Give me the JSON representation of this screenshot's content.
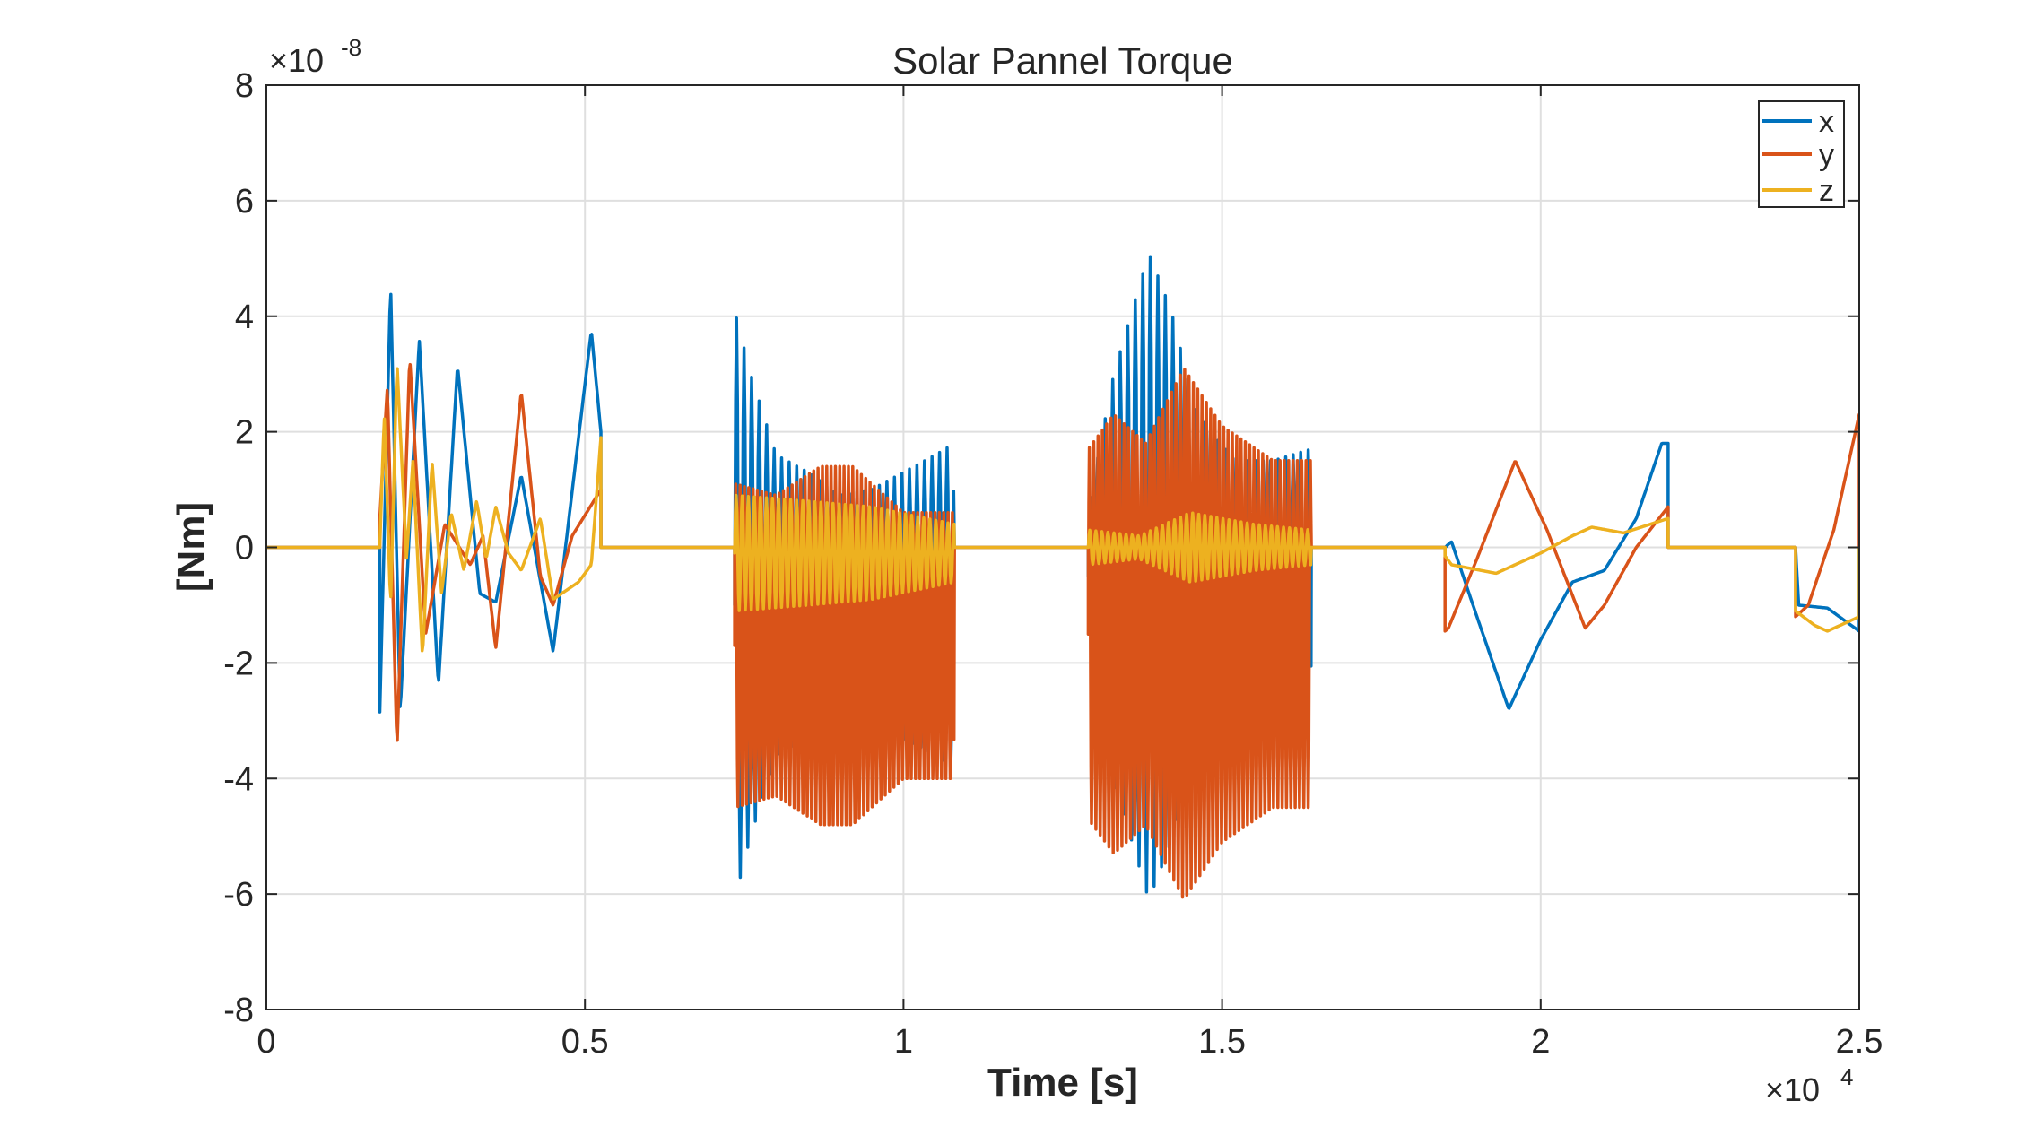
{
  "chart_data": {
    "type": "line",
    "title": "Solar Pannel Torque",
    "xlabel": "Time [s]",
    "ylabel": "[Nm]",
    "x_exponent_label": "×10",
    "x_exponent_power": "4",
    "y_exponent_label": "×10",
    "y_exponent_power": "-8",
    "xlim": [
      0,
      2.5
    ],
    "ylim": [
      -8,
      8
    ],
    "xticks": [
      0,
      0.5,
      1,
      1.5,
      2,
      2.5
    ],
    "xtick_labels": [
      "0",
      "0.5",
      "1",
      "1.5",
      "2",
      "2.5"
    ],
    "yticks": [
      -8,
      -6,
      -4,
      -2,
      0,
      2,
      4,
      6,
      8
    ],
    "ytick_labels": [
      "-8",
      "-6",
      "-4",
      "-2",
      "0",
      "2",
      "4",
      "6",
      "8"
    ],
    "grid": true,
    "legend_position": "top-right",
    "colors": {
      "x": "#0072BD",
      "y": "#D95319",
      "z": "#EDB120",
      "grid": "#dfdfdf",
      "axis": "#262626"
    },
    "series": [
      {
        "name": "x",
        "segments": [
          {
            "x0": 0.178,
            "x1": 0.525,
            "baseline": 0.0,
            "points": [
              [
                0.178,
                -2.85
              ],
              [
                0.195,
                4.55
              ],
              [
                0.21,
                -2.85
              ],
              [
                0.24,
                3.6
              ],
              [
                0.27,
                -2.4
              ],
              [
                0.3,
                3.15
              ],
              [
                0.335,
                -0.8
              ],
              [
                0.36,
                -0.95
              ],
              [
                0.4,
                1.25
              ],
              [
                0.45,
                -1.8
              ],
              [
                0.51,
                3.75
              ],
              [
                0.525,
                2.0
              ]
            ],
            "osc": []
          },
          {
            "x0": 0.735,
            "x1": 1.08,
            "baseline": -1.0,
            "points": [],
            "osc": [
              {
                "period": 0.0118,
                "amp": [
                  [
                    0.735,
                    5.1
                  ],
                  [
                    0.76,
                    4.0
                  ],
                  [
                    0.8,
                    2.6
                  ],
                  [
                    0.85,
                    2.3
                  ],
                  [
                    0.9,
                    1.9
                  ],
                  [
                    0.95,
                    2.0
                  ],
                  [
                    1.0,
                    2.3
                  ],
                  [
                    1.05,
                    2.6
                  ],
                  [
                    1.08,
                    2.8
                  ]
                ]
              }
            ]
          },
          {
            "x0": 1.29,
            "x1": 1.64,
            "baseline": -0.5,
            "points": [],
            "osc": [
              {
                "period": 0.0118,
                "amp": [
                  [
                    1.29,
                    1.2
                  ],
                  [
                    1.33,
                    3.5
                  ],
                  [
                    1.385,
                    5.6
                  ],
                  [
                    1.42,
                    4.6
                  ],
                  [
                    1.46,
                    2.8
                  ],
                  [
                    1.52,
                    2.0
                  ],
                  [
                    1.58,
                    2.0
                  ],
                  [
                    1.64,
                    2.2
                  ]
                ]
              }
            ]
          },
          {
            "x0": 1.85,
            "x1": 2.2,
            "baseline": 0.0,
            "points": [
              [
                1.85,
                0.0
              ],
              [
                1.86,
                0.1
              ],
              [
                1.9,
                -1.2
              ],
              [
                1.95,
                -2.8
              ],
              [
                2.0,
                -1.6
              ],
              [
                2.05,
                -0.6
              ],
              [
                2.1,
                -0.4
              ],
              [
                2.15,
                0.5
              ],
              [
                2.19,
                1.8
              ],
              [
                2.2,
                1.8
              ]
            ],
            "osc": []
          },
          {
            "x0": 2.4,
            "x1": 2.5,
            "baseline": 0.0,
            "points": [
              [
                2.4,
                0.0
              ],
              [
                2.405,
                -1.0
              ],
              [
                2.45,
                -1.05
              ],
              [
                2.5,
                -1.45
              ]
            ],
            "osc": []
          }
        ]
      },
      {
        "name": "y",
        "segments": [
          {
            "x0": 0.178,
            "x1": 0.525,
            "baseline": 0.0,
            "points": [
              [
                0.178,
                0.5
              ],
              [
                0.19,
                2.8
              ],
              [
                0.205,
                -3.5
              ],
              [
                0.225,
                3.3
              ],
              [
                0.25,
                -1.5
              ],
              [
                0.28,
                0.4
              ],
              [
                0.32,
                -0.3
              ],
              [
                0.34,
                0.2
              ],
              [
                0.36,
                -1.75
              ],
              [
                0.4,
                2.7
              ],
              [
                0.43,
                -0.5
              ],
              [
                0.45,
                -1.0
              ],
              [
                0.48,
                0.2
              ],
              [
                0.525,
                1.0
              ]
            ],
            "osc": []
          },
          {
            "x0": 0.735,
            "x1": 1.08,
            "baseline": -1.7,
            "points": [],
            "osc": [
              {
                "period": 0.0068,
                "amp": [
                  [
                    0.735,
                    2.8
                  ],
                  [
                    0.8,
                    2.6
                  ],
                  [
                    0.87,
                    3.1
                  ],
                  [
                    0.92,
                    3.1
                  ],
                  [
                    1.0,
                    2.3
                  ],
                  [
                    1.08,
                    2.3
                  ]
                ]
              }
            ]
          },
          {
            "x0": 1.29,
            "x1": 1.64,
            "baseline": -1.5,
            "points": [],
            "osc": [
              {
                "period": 0.0068,
                "amp": [
                  [
                    1.29,
                    3.2
                  ],
                  [
                    1.33,
                    3.8
                  ],
                  [
                    1.38,
                    3.3
                  ],
                  [
                    1.44,
                    4.6
                  ],
                  [
                    1.5,
                    3.6
                  ],
                  [
                    1.58,
                    3.0
                  ],
                  [
                    1.64,
                    3.0
                  ]
                ]
              }
            ]
          },
          {
            "x0": 1.85,
            "x1": 2.2,
            "baseline": 0.0,
            "points": [
              [
                1.85,
                -1.45
              ],
              [
                1.855,
                -1.4
              ],
              [
                1.9,
                -0.2
              ],
              [
                1.96,
                1.5
              ],
              [
                2.01,
                0.3
              ],
              [
                2.07,
                -1.4
              ],
              [
                2.1,
                -1.0
              ],
              [
                2.15,
                0.0
              ],
              [
                2.2,
                0.7
              ]
            ],
            "osc": []
          },
          {
            "x0": 2.4,
            "x1": 2.5,
            "baseline": 0.0,
            "points": [
              [
                2.4,
                -1.2
              ],
              [
                2.42,
                -1.0
              ],
              [
                2.46,
                0.3
              ],
              [
                2.5,
                2.3
              ]
            ],
            "osc": []
          }
        ]
      },
      {
        "name": "z",
        "segments": [
          {
            "x0": 0.178,
            "x1": 0.525,
            "baseline": 0.0,
            "points": [
              [
                0.178,
                0.0
              ],
              [
                0.185,
                2.3
              ],
              [
                0.195,
                -1.0
              ],
              [
                0.205,
                3.2
              ],
              [
                0.22,
                -0.2
              ],
              [
                0.23,
                1.5
              ],
              [
                0.245,
                -1.9
              ],
              [
                0.26,
                1.5
              ],
              [
                0.275,
                -0.8
              ],
              [
                0.29,
                0.6
              ],
              [
                0.31,
                -0.4
              ],
              [
                0.33,
                0.8
              ],
              [
                0.345,
                -0.2
              ],
              [
                0.36,
                0.7
              ],
              [
                0.38,
                -0.1
              ],
              [
                0.4,
                -0.4
              ],
              [
                0.43,
                0.5
              ],
              [
                0.45,
                -0.9
              ],
              [
                0.49,
                -0.6
              ],
              [
                0.51,
                -0.3
              ],
              [
                0.525,
                1.9
              ]
            ],
            "osc": []
          },
          {
            "x0": 0.735,
            "x1": 1.08,
            "baseline": -0.1,
            "points": [],
            "osc": [
              {
                "period": 0.0095,
                "amp": [
                  [
                    0.735,
                    1.0
                  ],
                  [
                    0.85,
                    0.9
                  ],
                  [
                    0.95,
                    0.8
                  ],
                  [
                    1.08,
                    0.5
                  ]
                ]
              }
            ]
          },
          {
            "x0": 1.29,
            "x1": 1.64,
            "baseline": 0.0,
            "points": [],
            "osc": [
              {
                "period": 0.0095,
                "amp": [
                  [
                    1.29,
                    0.3
                  ],
                  [
                    1.37,
                    0.2
                  ],
                  [
                    1.45,
                    0.6
                  ],
                  [
                    1.55,
                    0.4
                  ],
                  [
                    1.64,
                    0.3
                  ]
                ]
              }
            ]
          },
          {
            "x0": 1.85,
            "x1": 2.2,
            "baseline": 0.0,
            "points": [
              [
                1.85,
                -0.15
              ],
              [
                1.86,
                -0.3
              ],
              [
                1.93,
                -0.45
              ],
              [
                2.0,
                -0.1
              ],
              [
                2.05,
                0.2
              ],
              [
                2.08,
                0.35
              ],
              [
                2.13,
                0.25
              ],
              [
                2.2,
                0.5
              ]
            ],
            "osc": []
          },
          {
            "x0": 2.4,
            "x1": 2.5,
            "baseline": 0.0,
            "points": [
              [
                2.4,
                -1.1
              ],
              [
                2.43,
                -1.35
              ],
              [
                2.45,
                -1.45
              ],
              [
                2.5,
                -1.2
              ]
            ],
            "osc": []
          }
        ]
      }
    ]
  }
}
